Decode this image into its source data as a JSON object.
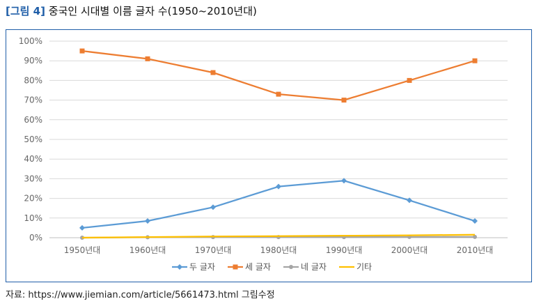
{
  "figure": {
    "tag": "[그림 4]",
    "title": "중국인 시대별 이름 글자 수(1950~2010년대)"
  },
  "source": "자료: https://www.jiemian.com/article/5661473.html 그림수정",
  "chart_data": {
    "type": "line",
    "categories": [
      "1950년대",
      "1960년대",
      "1970년대",
      "1980년대",
      "1990년대",
      "2000년대",
      "2010년대"
    ],
    "y_ticks": [
      "0%",
      "10%",
      "20%",
      "30%",
      "40%",
      "50%",
      "60%",
      "70%",
      "80%",
      "90%",
      "100%"
    ],
    "ylim": [
      0,
      100
    ],
    "grid": true,
    "legend_position": "bottom",
    "series": [
      {
        "name": "두 글자",
        "color": "#5b9bd5",
        "marker": "diamond",
        "values": [
          5,
          8.5,
          15.5,
          26,
          29,
          19,
          8.5
        ]
      },
      {
        "name": "세 글자",
        "color": "#ed7d31",
        "marker": "square",
        "values": [
          95,
          91,
          84,
          73,
          70,
          80,
          90
        ]
      },
      {
        "name": "네 글자",
        "color": "#a5a5a5",
        "marker": "circle",
        "values": [
          0,
          0.2,
          0.3,
          0.3,
          0.3,
          0.4,
          0.4
        ]
      },
      {
        "name": "기타",
        "color": "#ffc000",
        "marker": "none",
        "values": [
          0,
          0.3,
          0.6,
          0.8,
          1,
          1.2,
          1.5
        ]
      }
    ]
  }
}
